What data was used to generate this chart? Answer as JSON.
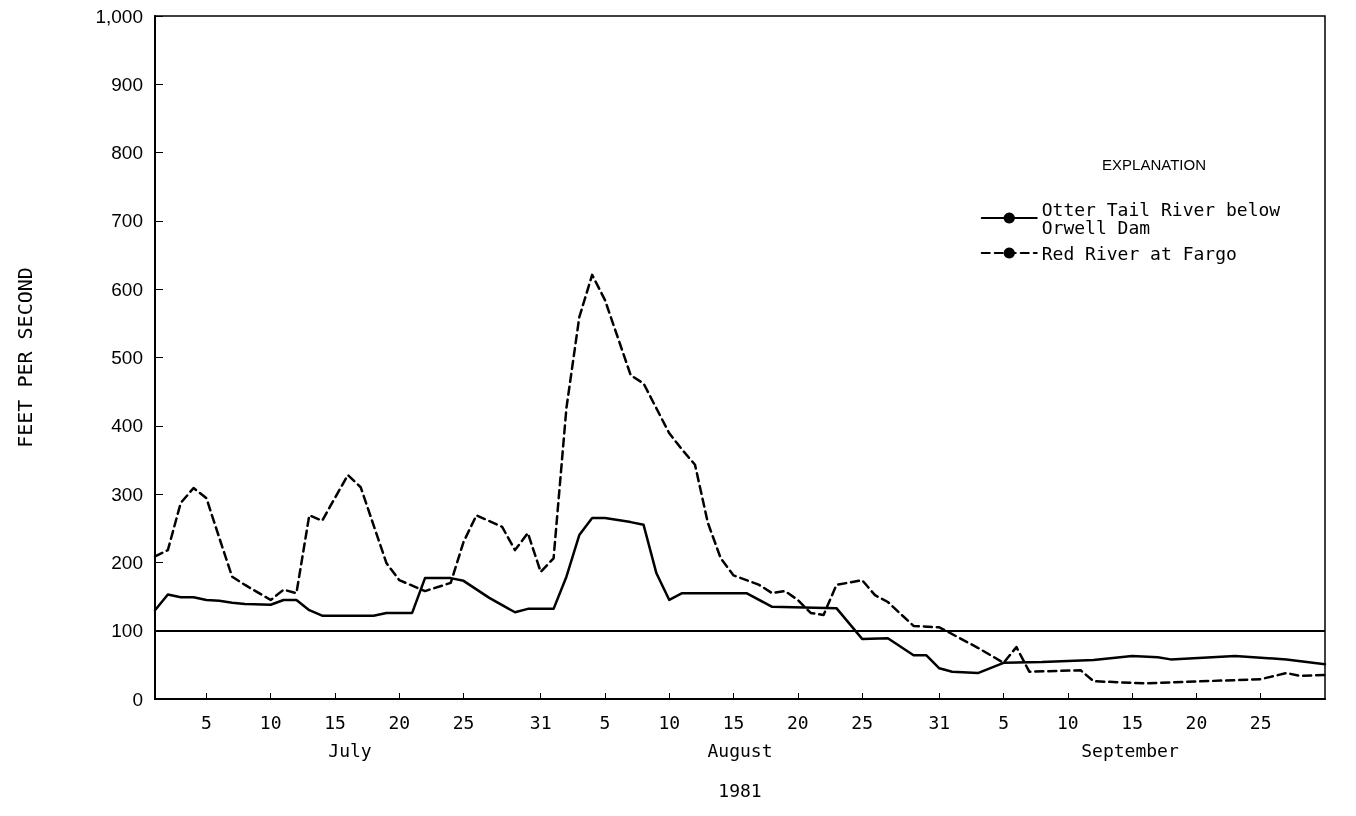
{
  "chart_data": {
    "type": "line",
    "xlabel": "1981",
    "ylabel": "FEET PER SECOND",
    "legend_title": "EXPLANATION",
    "legend": "top right",
    "grid": false,
    "marker": "none",
    "xlim": [
      "1981-07-01",
      "1981-09-30"
    ],
    "ylim": [
      0,
      1000
    ],
    "yticks": [
      0,
      100,
      200,
      300,
      400,
      500,
      600,
      700,
      800,
      900,
      {
        "value": 1000,
        "label": "1,000"
      }
    ],
    "xticks": [
      {
        "value": "1981-07-05",
        "label": "5"
      },
      {
        "value": "1981-07-10",
        "label": "10"
      },
      {
        "value": "1981-07-15",
        "label": "15"
      },
      {
        "value": "1981-07-20",
        "label": "20"
      },
      {
        "value": "1981-07-25",
        "label": "25"
      },
      {
        "value": "1981-07-31",
        "label": "31"
      },
      {
        "value": "1981-08-05",
        "label": "5"
      },
      {
        "value": "1981-08-10",
        "label": "10"
      },
      {
        "value": "1981-08-15",
        "label": "15"
      },
      {
        "value": "1981-08-20",
        "label": "20"
      },
      {
        "value": "1981-08-25",
        "label": "25"
      },
      {
        "value": "1981-08-31",
        "label": "31"
      },
      {
        "value": "1981-09-05",
        "label": "5"
      },
      {
        "value": "1981-09-10",
        "label": "10"
      },
      {
        "value": "1981-09-15",
        "label": "15"
      },
      {
        "value": "1981-09-20",
        "label": "20"
      },
      {
        "value": "1981-09-25",
        "label": "25"
      }
    ],
    "annotations": [
      "July",
      "August",
      "September"
    ],
    "ref_lines": [
      {
        "axis": "y",
        "value": 100,
        "color": "#000000",
        "line_style": "solid"
      }
    ],
    "series": [
      {
        "name": "Otter Tail River below Orwell Dam",
        "color": "#000000",
        "line_style": "solid",
        "x": [
          "1981-07-01",
          "1981-07-02",
          "1981-07-03",
          "1981-07-04",
          "1981-07-05",
          "1981-07-06",
          "1981-07-07",
          "1981-07-08",
          "1981-07-10",
          "1981-07-11",
          "1981-07-12",
          "1981-07-13",
          "1981-07-14",
          "1981-07-18",
          "1981-07-19",
          "1981-07-21",
          "1981-07-22",
          "1981-07-24",
          "1981-07-25",
          "1981-07-27",
          "1981-07-29",
          "1981-07-30",
          "1981-08-01",
          "1981-08-02",
          "1981-08-03",
          "1981-08-04",
          "1981-08-05",
          "1981-08-07",
          "1981-08-08",
          "1981-08-09",
          "1981-08-10",
          "1981-08-11",
          "1981-08-16",
          "1981-08-18",
          "1981-08-23",
          "1981-08-25",
          "1981-08-27",
          "1981-08-29",
          "1981-08-30",
          "1981-08-31",
          "1981-09-01",
          "1981-09-03",
          "1981-09-05",
          "1981-09-08",
          "1981-09-12",
          "1981-09-15",
          "1981-09-17",
          "1981-09-18",
          "1981-09-23",
          "1981-09-27",
          "1981-09-30"
        ],
        "values": [
          130,
          153,
          149,
          149,
          145,
          144,
          141,
          139,
          138,
          145,
          145,
          130,
          122,
          122,
          126,
          126,
          177,
          177,
          173,
          148,
          127,
          132,
          132,
          179,
          240,
          265,
          265,
          259,
          255,
          184,
          145,
          155,
          155,
          135,
          133,
          88,
          89,
          64,
          64,
          45,
          40,
          38,
          53,
          54,
          57,
          63,
          61,
          58,
          63,
          58,
          51
        ]
      },
      {
        "name": "Red River at Fargo",
        "color": "#000000",
        "line_style": "dashed",
        "x": [
          "1981-07-01",
          "1981-07-02",
          "1981-07-03",
          "1981-07-04",
          "1981-07-05",
          "1981-07-06",
          "1981-07-07",
          "1981-07-08",
          "1981-07-10",
          "1981-07-11",
          "1981-07-12",
          "1981-07-13",
          "1981-07-14",
          "1981-07-16",
          "1981-07-17",
          "1981-07-19",
          "1981-07-20",
          "1981-07-22",
          "1981-07-24",
          "1981-07-25",
          "1981-07-26",
          "1981-07-28",
          "1981-07-29",
          "1981-07-30",
          "1981-07-31",
          "1981-08-01",
          "1981-08-02",
          "1981-08-03",
          "1981-08-04",
          "1981-08-05",
          "1981-08-07",
          "1981-08-08",
          "1981-08-10",
          "1981-08-11",
          "1981-08-12",
          "1981-08-13",
          "1981-08-14",
          "1981-08-15",
          "1981-08-17",
          "1981-08-18",
          "1981-08-19",
          "1981-08-20",
          "1981-08-21",
          "1981-08-22",
          "1981-08-23",
          "1981-08-25",
          "1981-08-26",
          "1981-08-27",
          "1981-08-29",
          "1981-08-31",
          "1981-09-03",
          "1981-09-05",
          "1981-09-06",
          "1981-09-07",
          "1981-09-11",
          "1981-09-12",
          "1981-09-16",
          "1981-09-25",
          "1981-09-27",
          "1981-09-28",
          "1981-09-30"
        ],
        "values": [
          209,
          218,
          287,
          309,
          294,
          236,
          179,
          167,
          145,
          160,
          155,
          269,
          261,
          328,
          310,
          199,
          174,
          158,
          170,
          230,
          269,
          252,
          218,
          243,
          186,
          206,
          426,
          559,
          621,
          584,
          474,
          462,
          389,
          365,
          343,
          258,
          206,
          181,
          167,
          155,
          158,
          145,
          126,
          123,
          167,
          174,
          152,
          142,
          107,
          105,
          75,
          53,
          76,
          40,
          42,
          26,
          23,
          29,
          38,
          34,
          35
        ]
      }
    ]
  }
}
